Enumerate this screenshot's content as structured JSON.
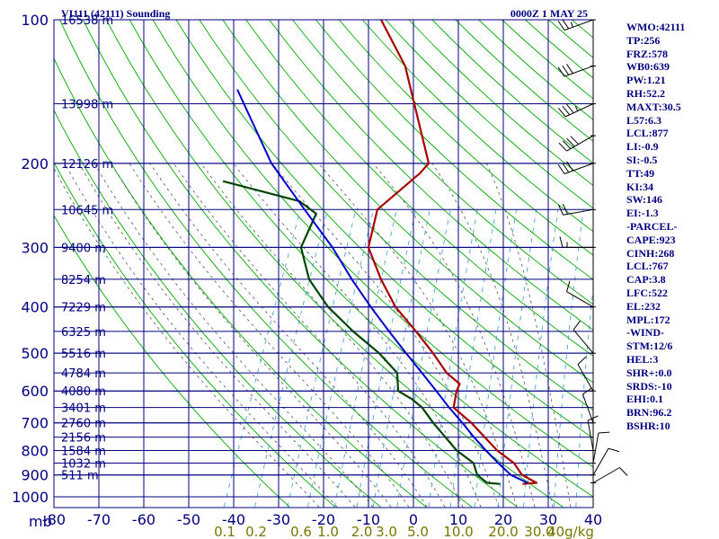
{
  "header": {
    "station": "VI111 (42111) Sounding",
    "valid": "0000Z  1 MAY 25"
  },
  "colors": {
    "frame": "#000080",
    "temperature": "#aa0000",
    "dewpoint": "#004400",
    "parcel": "#0000cc",
    "dry_adiabat": "#00aa00",
    "moist_adiabat": "#555555",
    "mixing_ratio": "#3399dd",
    "wind_barb": "#000000",
    "mixing_label": "#777700"
  },
  "chart_data": {
    "type": "line",
    "title": "VI111 (42111) Sounding",
    "ylabel": "mb",
    "xlabel": "",
    "x_axis": {
      "ticks": [
        -80,
        -70,
        -60,
        -50,
        -40,
        -30,
        -20,
        -10,
        0,
        10,
        20,
        30,
        40
      ],
      "xlim": [
        -80,
        40
      ]
    },
    "y_axis": {
      "ticks": [
        100,
        200,
        300,
        400,
        500,
        600,
        700,
        800,
        900,
        1000
      ],
      "ylim": [
        100,
        1000
      ],
      "scale": "log-skew"
    },
    "mixing_ratio_labels": [
      {
        "label": "0.1",
        "t": -42
      },
      {
        "label": "0.2",
        "t": -35
      },
      {
        "label": "0.6",
        "t": -25
      },
      {
        "label": "1.0",
        "t": -19
      },
      {
        "label": "2.0",
        "t": -11.5
      },
      {
        "label": "3.0",
        "t": -6
      },
      {
        "label": "5.0",
        "t": 1
      },
      {
        "label": "10.0",
        "t": 10
      },
      {
        "label": "20.0",
        "t": 20
      },
      {
        "label": "30.0",
        "t": 28
      },
      {
        "label": "40g/kg",
        "t": 35
      }
    ],
    "heights": [
      {
        "p": 100,
        "label": "16538 m"
      },
      {
        "p": 150,
        "label": "13998 m"
      },
      {
        "p": 200,
        "label": "12126 m"
      },
      {
        "p": 250,
        "label": "10645 m"
      },
      {
        "p": 300,
        "label": "9400 m"
      },
      {
        "p": 350,
        "label": "8254 m"
      },
      {
        "p": 400,
        "label": "7229 m"
      },
      {
        "p": 450,
        "label": "6325 m"
      },
      {
        "p": 500,
        "label": "5516 m"
      },
      {
        "p": 550,
        "label": "4784 m"
      },
      {
        "p": 600,
        "label": "4080 m"
      },
      {
        "p": 650,
        "label": "3401 m"
      },
      {
        "p": 700,
        "label": "2760 m"
      },
      {
        "p": 750,
        "label": "2156 m"
      },
      {
        "p": 800,
        "label": "1584 m"
      },
      {
        "p": 850,
        "label": "1032 m"
      },
      {
        "p": 900,
        "label": "511 m"
      }
    ],
    "series": [
      {
        "key": "temperature",
        "points": [
          [
            100,
            -55
          ],
          [
            125,
            -45
          ],
          [
            200,
            -30
          ],
          [
            210,
            -31
          ],
          [
            250,
            -36.8
          ],
          [
            300,
            -35
          ],
          [
            350,
            -29
          ],
          [
            400,
            -23
          ],
          [
            450,
            -16
          ],
          [
            500,
            -10
          ],
          [
            550,
            -5
          ],
          [
            580,
            -1
          ],
          [
            600,
            -1
          ],
          [
            650,
            0
          ],
          [
            700,
            5.5
          ],
          [
            800,
            14
          ],
          [
            850,
            19
          ],
          [
            900,
            22
          ],
          [
            935,
            26
          ],
          [
            940,
            23
          ]
        ]
      },
      {
        "key": "dewpoint",
        "points": [
          [
            218,
            -74
          ],
          [
            240,
            -55
          ],
          [
            255,
            -50
          ],
          [
            300,
            -50
          ],
          [
            350,
            -45
          ],
          [
            400,
            -38
          ],
          [
            450,
            -30
          ],
          [
            500,
            -22
          ],
          [
            550,
            -16
          ],
          [
            600,
            -14
          ],
          [
            625,
            -10
          ],
          [
            650,
            -7
          ],
          [
            700,
            -3
          ],
          [
            800,
            5
          ],
          [
            850,
            10
          ],
          [
            900,
            12
          ],
          [
            935,
            15
          ],
          [
            940,
            18
          ]
        ]
      },
      {
        "key": "parcel",
        "points": [
          [
            140,
            -80
          ],
          [
            200,
            -65
          ],
          [
            250,
            -53
          ],
          [
            300,
            -43
          ],
          [
            350,
            -35.5
          ],
          [
            400,
            -28.5
          ],
          [
            450,
            -22
          ],
          [
            500,
            -16
          ],
          [
            550,
            -10.5
          ],
          [
            600,
            -5.5
          ],
          [
            650,
            -1
          ],
          [
            700,
            3.5
          ],
          [
            750,
            7.5
          ],
          [
            800,
            11.5
          ],
          [
            850,
            15.5
          ],
          [
            900,
            19.5
          ],
          [
            935,
            24
          ]
        ]
      }
    ],
    "wind_barbs": [
      {
        "p": 100,
        "dir": 250,
        "spd": 25
      },
      {
        "p": 125,
        "dir": 250,
        "spd": 30
      },
      {
        "p": 150,
        "dir": 245,
        "spd": 35
      },
      {
        "p": 175,
        "dir": 240,
        "spd": 40
      },
      {
        "p": 200,
        "dir": 250,
        "spd": 30
      },
      {
        "p": 250,
        "dir": 260,
        "spd": 20
      },
      {
        "p": 300,
        "dir": 270,
        "spd": 15
      },
      {
        "p": 400,
        "dir": 300,
        "spd": 10
      },
      {
        "p": 500,
        "dir": 320,
        "spd": 10
      },
      {
        "p": 600,
        "dir": 330,
        "spd": 10
      },
      {
        "p": 700,
        "dir": 340,
        "spd": 10
      },
      {
        "p": 800,
        "dir": 350,
        "spd": 10
      },
      {
        "p": 850,
        "dir": 10,
        "spd": 10
      },
      {
        "p": 900,
        "dir": 30,
        "spd": 10
      },
      {
        "p": 935,
        "dir": 60,
        "spd": 10
      }
    ]
  },
  "indices": [
    "WMO:42111",
    "TP:256",
    "FRZ:578",
    "WB0:639",
    "PW:1.21",
    "RH:52.2",
    "MAXT:30.5",
    "L57:6.3",
    "LCL:877",
    "LI:-0.9",
    "SI:-0.5",
    "TT:49",
    "KI:34",
    "SW:146",
    "EI:-1.3",
    "-PARCEL-",
    "CAPE:923",
    "CINH:268",
    "LCL:767",
    "CAP:3.8",
    "LFC:522",
    "EL:232",
    "MPL:172",
    "-WIND-",
    "STM:12/6",
    "HEL:3",
    "SHR+:0.0",
    "SRDS:-10",
    "EHI:0.1",
    "BRN:96.2",
    "BSHR:10"
  ]
}
